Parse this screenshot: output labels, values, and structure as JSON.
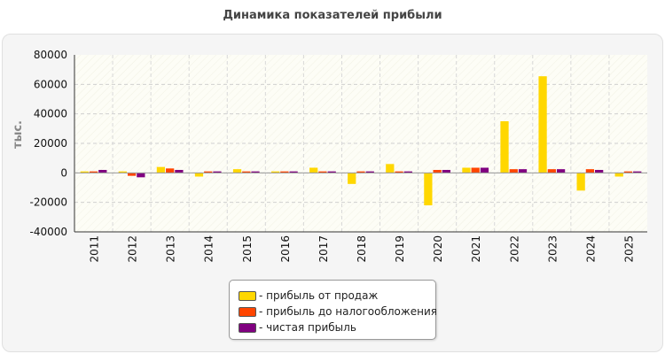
{
  "title": "Динамика показателей прибыли",
  "chart_data": {
    "type": "bar",
    "title": "Динамика показателей прибыли",
    "xlabel": "",
    "ylabel": "тыс.",
    "ylim": [
      -40000,
      80000
    ],
    "yticks": [
      80000,
      60000,
      40000,
      20000,
      0,
      -20000,
      -40000
    ],
    "grid": true,
    "legend_position": "bottom",
    "categories": [
      "2011",
      "2012",
      "2013",
      "2014",
      "2015",
      "2016",
      "2017",
      "2018",
      "2019",
      "2020",
      "2021",
      "2022",
      "2023",
      "2024",
      "2025"
    ],
    "series": [
      {
        "name": "- прибыль от продаж",
        "color": "#ffd700",
        "values": [
          1000,
          1000,
          4000,
          -2500,
          2500,
          1000,
          3500,
          -7500,
          6000,
          -22000,
          3500,
          35000,
          65500,
          -12000,
          -2500
        ]
      },
      {
        "name": "- прибыль до налогообложения",
        "color": "#ff4500",
        "values": [
          1000,
          -2000,
          3000,
          1000,
          1000,
          1000,
          1000,
          1000,
          1000,
          2000,
          3500,
          2500,
          2500,
          2500,
          1000
        ]
      },
      {
        "name": "- чистая прибыль",
        "color": "#800080",
        "values": [
          2000,
          -3000,
          2000,
          1000,
          1000,
          1000,
          1000,
          1000,
          1000,
          2000,
          3500,
          2500,
          2500,
          2000,
          1000
        ]
      }
    ]
  }
}
